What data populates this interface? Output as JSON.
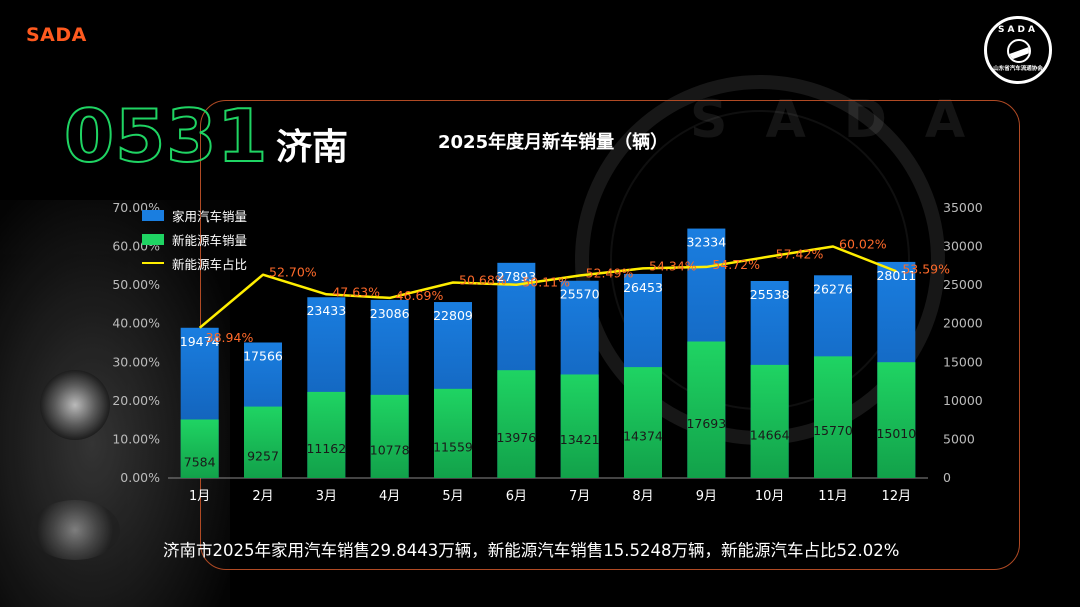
{
  "brand": "SADA",
  "logo": {
    "top_text": "SADA",
    "bottom_text": "山东省汽车流通协会"
  },
  "city_code": "0531",
  "city_name": "济南",
  "summary": "济南市2025年家用汽车销售29.8443万辆，新能源汽车销售15.5248万辆，新能源汽车占比52.02%",
  "colors": {
    "accent_orange": "#ff5a1f",
    "bar_total": "#1a7ee0",
    "bar_nev": "#1fd463",
    "line_share": "#ffee00",
    "share_label": "#ff6a2a"
  },
  "chart_data": {
    "type": "bar",
    "title": "2025年度月新车销量（辆）",
    "categories": [
      "1月",
      "2月",
      "3月",
      "4月",
      "5月",
      "6月",
      "7月",
      "8月",
      "9月",
      "10月",
      "11月",
      "12月"
    ],
    "series": [
      {
        "name": "家用汽车销量",
        "type": "bar",
        "values": [
          19474,
          17566,
          23433,
          23086,
          22809,
          27893,
          25570,
          26453,
          32334,
          25538,
          26276,
          28011
        ]
      },
      {
        "name": "新能源车销量",
        "type": "bar",
        "values": [
          7584,
          9257,
          11162,
          10778,
          11559,
          13976,
          13421,
          14374,
          17693,
          14664,
          15770,
          15010
        ]
      },
      {
        "name": "新能源车占比",
        "type": "line",
        "axis": "left",
        "values": [
          38.94,
          52.7,
          47.63,
          46.69,
          50.68,
          50.11,
          52.49,
          54.34,
          54.72,
          57.42,
          60.02,
          53.59
        ]
      }
    ],
    "left_axis": {
      "ylim": [
        0,
        70
      ],
      "ticks": [
        "0.00%",
        "10.00%",
        "20.00%",
        "30.00%",
        "40.00%",
        "50.00%",
        "60.00%",
        "70.00%"
      ]
    },
    "right_axis": {
      "ylim": [
        0,
        35000
      ],
      "ticks": [
        "0",
        "5000",
        "10000",
        "15000",
        "20000",
        "25000",
        "30000",
        "35000"
      ]
    },
    "share_labels": [
      "38.94%",
      "52.70%",
      "47.63%",
      "46.69%",
      "50.68%",
      "50.11%",
      "52.49%",
      "54.34%",
      "54.72%",
      "57.42%",
      "60.02%",
      "53.59%"
    ],
    "legend_position": "top-left",
    "grid": false
  }
}
